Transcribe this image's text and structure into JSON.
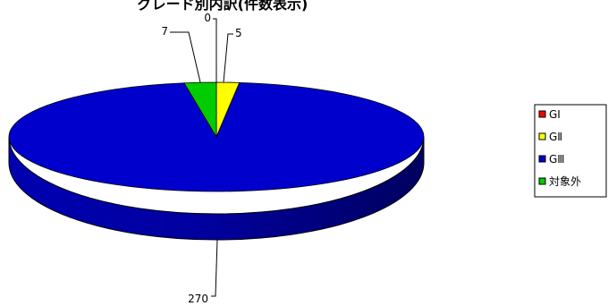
{
  "chart_data": {
    "type": "pie",
    "title": "グレード別内訳(件数表示)",
    "categories": [
      "GⅠ",
      "GⅡ",
      "GⅢ",
      "対象外"
    ],
    "values": [
      0,
      5,
      270,
      7
    ],
    "data_labels": [
      "0",
      "5",
      "270",
      "7"
    ],
    "colors": [
      "#ff0000",
      "#ffff00",
      "#0000cc",
      "#00cc00"
    ],
    "legend_position": "right",
    "three_d": true
  }
}
